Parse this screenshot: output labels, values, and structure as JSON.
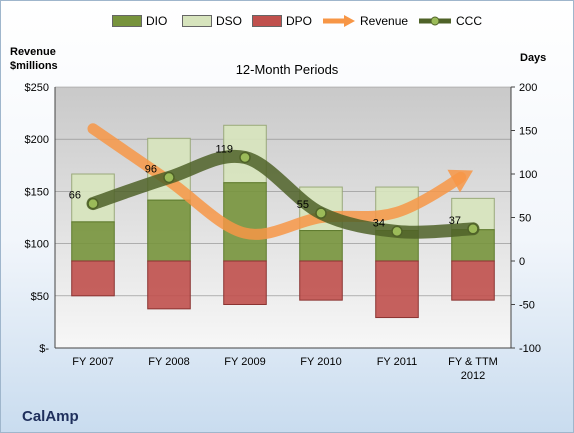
{
  "chart_data": {
    "type": "bar",
    "title": "12-Month Periods",
    "company": "CalAmp",
    "y_left_label": [
      "Revenue",
      "$millions"
    ],
    "y_right_label": "Days",
    "categories": [
      [
        "FY 2007"
      ],
      [
        "FY 2008"
      ],
      [
        "FY 2009"
      ],
      [
        "FY 2010"
      ],
      [
        "FY 2011"
      ],
      [
        "FY & TTM",
        "2012"
      ]
    ],
    "y_left_ticks": [
      "$-",
      "$50",
      "$100",
      "$150",
      "$200",
      "$250"
    ],
    "y_right_ticks": [
      "-100",
      "-50",
      "0",
      "50",
      "100",
      "150",
      "200"
    ],
    "ylim_left": [
      0,
      250
    ],
    "ylim_right": [
      -100,
      200
    ],
    "series": [
      {
        "name": "DIO",
        "color": "#77933c",
        "values": [
          45,
          70,
          90,
          35,
          35,
          36
        ]
      },
      {
        "name": "DSO",
        "color": "#d7e4bd",
        "values": [
          55,
          71,
          66,
          50,
          50,
          36
        ]
      },
      {
        "name": "DPO",
        "color": "#c0504d",
        "values": [
          -40,
          -55,
          -50,
          -45,
          -65,
          -45
        ]
      },
      {
        "name": "Revenue",
        "color": "#f79646",
        "values": [
          210,
          160,
          110,
          125,
          130,
          170
        ]
      },
      {
        "name": "CCC",
        "color": "#4f6228",
        "values": [
          66,
          96,
          119,
          55,
          34,
          37
        ]
      }
    ],
    "data_labels": [
      "66",
      "96",
      "119",
      "55",
      "34",
      "37"
    ]
  }
}
